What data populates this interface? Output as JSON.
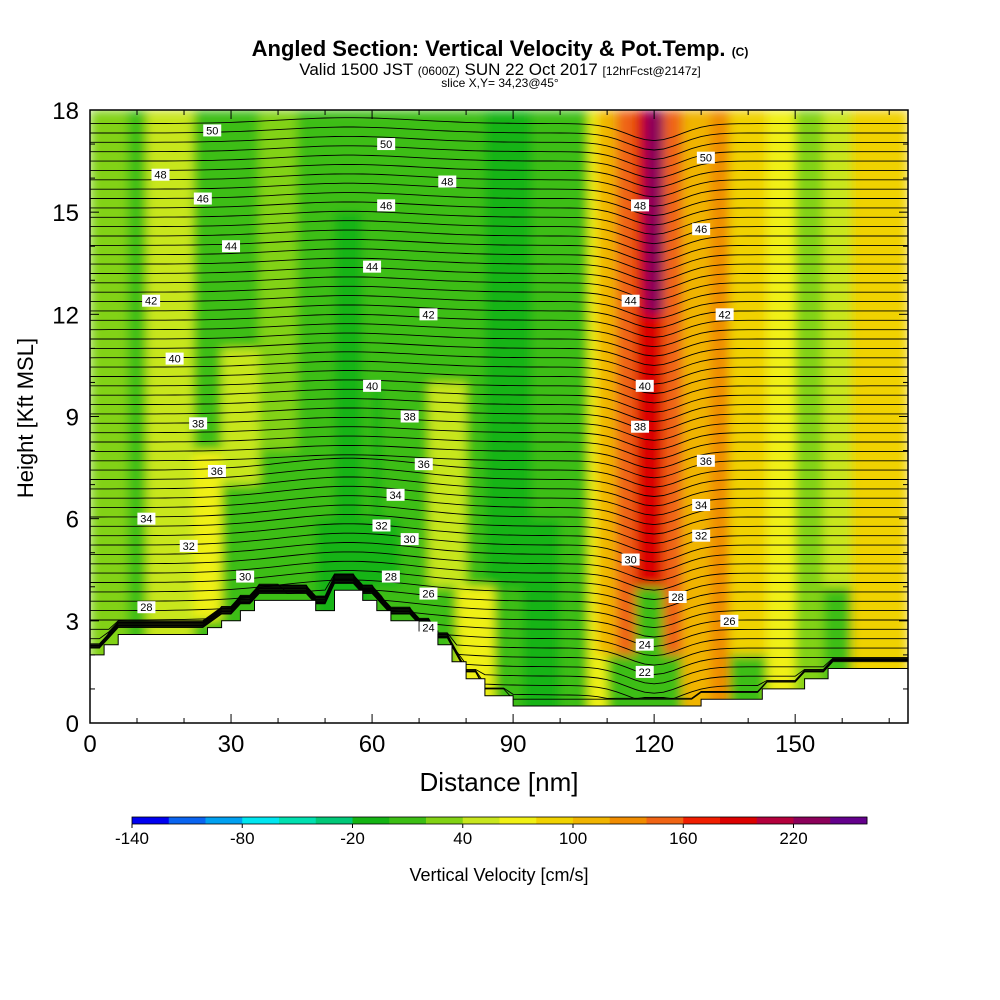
{
  "title": {
    "main": "Angled Section: Vertical Velocity & Pot.Temp.",
    "main_unit": "(C)",
    "valid_prefix": "Valid 1500 JST",
    "valid_utc": "(0600Z)",
    "valid_date": "SUN 22 Oct 2017",
    "forecast": "[12hrFcst@2147z]",
    "slice": "slice X,Y= 34,23@45°"
  },
  "chart_data": {
    "type": "heatmap",
    "xlabel": "Distance [nm]",
    "ylabel": "Height [Kft MSL]",
    "xlim": [
      0,
      174
    ],
    "ylim": [
      0,
      18
    ],
    "x_ticks": [
      "0",
      "30",
      "60",
      "90",
      "120",
      "150"
    ],
    "y_ticks": [
      "0",
      "3",
      "6",
      "9",
      "12",
      "15",
      "18"
    ],
    "colorbar": {
      "label": "Vertical Velocity [cm/s]",
      "ticks": [
        "-140",
        "-80",
        "-20",
        "40",
        "100",
        "160",
        "220"
      ],
      "min": -140,
      "max": 260,
      "step": 20,
      "colors": [
        "#0000f0",
        "#0a64f0",
        "#00a0f0",
        "#00e6f0",
        "#00e0b0",
        "#00c878",
        "#14b414",
        "#3cbe14",
        "#82d214",
        "#c8e61e",
        "#f0f014",
        "#f0d200",
        "#f0b400",
        "#f08c00",
        "#f06414",
        "#f01e00",
        "#dc0000",
        "#b4003c",
        "#8c005a",
        "#64008c"
      ]
    },
    "terrain_kft": [
      [
        0,
        2.0
      ],
      [
        3,
        2.0
      ],
      [
        3,
        2.3
      ],
      [
        6,
        2.3
      ],
      [
        6,
        2.6
      ],
      [
        10,
        2.6
      ],
      [
        25,
        2.6
      ],
      [
        25,
        2.8
      ],
      [
        28,
        2.8
      ],
      [
        28,
        3.0
      ],
      [
        32,
        3.0
      ],
      [
        32,
        3.3
      ],
      [
        35,
        3.3
      ],
      [
        35,
        3.6
      ],
      [
        48,
        3.6
      ],
      [
        48,
        3.3
      ],
      [
        52,
        3.3
      ],
      [
        52,
        3.9
      ],
      [
        58,
        3.9
      ],
      [
        58,
        3.6
      ],
      [
        61,
        3.6
      ],
      [
        61,
        3.3
      ],
      [
        64,
        3.3
      ],
      [
        64,
        3.0
      ],
      [
        70,
        3.0
      ],
      [
        70,
        2.7
      ],
      [
        74,
        2.7
      ],
      [
        74,
        2.3
      ],
      [
        77,
        2.3
      ],
      [
        77,
        1.8
      ],
      [
        80,
        1.8
      ],
      [
        80,
        1.3
      ],
      [
        84,
        1.3
      ],
      [
        84,
        0.8
      ],
      [
        90,
        0.8
      ],
      [
        90,
        0.5
      ],
      [
        130,
        0.5
      ],
      [
        130,
        0.7
      ],
      [
        140,
        0.7
      ],
      [
        143,
        0.7
      ],
      [
        143,
        1.0
      ],
      [
        152,
        1.0
      ],
      [
        152,
        1.3
      ],
      [
        157,
        1.3
      ],
      [
        157,
        1.6
      ],
      [
        165,
        1.6
      ],
      [
        174,
        1.6
      ]
    ],
    "theta_contours_c": [
      22,
      24,
      26,
      28,
      30,
      32,
      34,
      36,
      38,
      40,
      42,
      44,
      46,
      48,
      50
    ],
    "contour_labels": [
      {
        "v": "50",
        "x": 26,
        "y": 17.4
      },
      {
        "v": "48",
        "x": 15,
        "y": 16.1
      },
      {
        "v": "46",
        "x": 24,
        "y": 15.4
      },
      {
        "v": "44",
        "x": 30,
        "y": 14.0
      },
      {
        "v": "42",
        "x": 13,
        "y": 12.4
      },
      {
        "v": "40",
        "x": 18,
        "y": 10.7
      },
      {
        "v": "38",
        "x": 23,
        "y": 8.8
      },
      {
        "v": "36",
        "x": 27,
        "y": 7.4
      },
      {
        "v": "34",
        "x": 12,
        "y": 6.0
      },
      {
        "v": "32",
        "x": 21,
        "y": 5.2
      },
      {
        "v": "30",
        "x": 33,
        "y": 4.3
      },
      {
        "v": "28",
        "x": 12,
        "y": 3.4
      },
      {
        "v": "50",
        "x": 63,
        "y": 17.0
      },
      {
        "v": "48",
        "x": 76,
        "y": 15.9
      },
      {
        "v": "46",
        "x": 63,
        "y": 15.2
      },
      {
        "v": "44",
        "x": 60,
        "y": 13.4
      },
      {
        "v": "42",
        "x": 72,
        "y": 12.0
      },
      {
        "v": "40",
        "x": 60,
        "y": 9.9
      },
      {
        "v": "38",
        "x": 68,
        "y": 9.0
      },
      {
        "v": "36",
        "x": 71,
        "y": 7.6
      },
      {
        "v": "34",
        "x": 65,
        "y": 6.7
      },
      {
        "v": "32",
        "x": 62,
        "y": 5.8
      },
      {
        "v": "30",
        "x": 68,
        "y": 5.4
      },
      {
        "v": "28",
        "x": 64,
        "y": 4.3
      },
      {
        "v": "26",
        "x": 72,
        "y": 3.8
      },
      {
        "v": "24",
        "x": 72,
        "y": 2.8
      },
      {
        "v": "50",
        "x": 131,
        "y": 16.6
      },
      {
        "v": "48",
        "x": 117,
        "y": 15.2
      },
      {
        "v": "46",
        "x": 130,
        "y": 14.5
      },
      {
        "v": "44",
        "x": 115,
        "y": 12.4
      },
      {
        "v": "42",
        "x": 135,
        "y": 12.0
      },
      {
        "v": "40",
        "x": 118,
        "y": 9.9
      },
      {
        "v": "38",
        "x": 117,
        "y": 8.7
      },
      {
        "v": "36",
        "x": 131,
        "y": 7.7
      },
      {
        "v": "34",
        "x": 130,
        "y": 6.4
      },
      {
        "v": "32",
        "x": 130,
        "y": 5.5
      },
      {
        "v": "30",
        "x": 115,
        "y": 4.8
      },
      {
        "v": "28",
        "x": 125,
        "y": 3.7
      },
      {
        "v": "26",
        "x": 136,
        "y": 3.0
      },
      {
        "v": "24",
        "x": 118,
        "y": 2.3
      },
      {
        "v": "22",
        "x": 118,
        "y": 1.5
      }
    ]
  }
}
